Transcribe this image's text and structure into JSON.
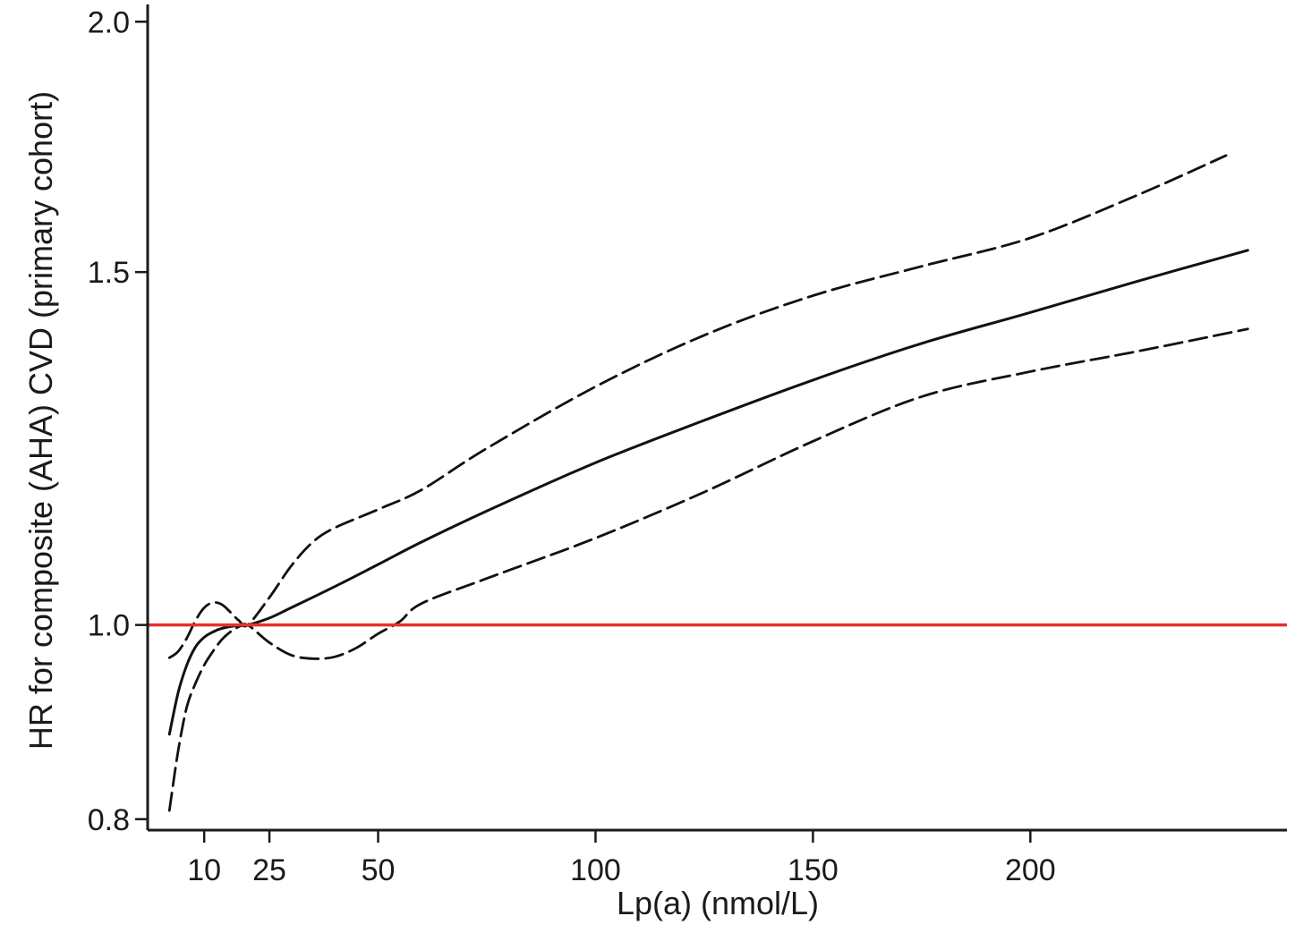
{
  "chart_data": {
    "type": "line",
    "title": "",
    "xlabel": "Lp(a) (nmol/L)",
    "ylabel": "HR for composite (AHA) CVD (primary cohort)",
    "xlim": [
      -3,
      259
    ],
    "ylim": [
      0.79,
      2.04
    ],
    "x_ticks": [
      10,
      25,
      50,
      100,
      150,
      200
    ],
    "x_tick_labels": [
      "10",
      "25",
      "50",
      "100",
      "150",
      "200"
    ],
    "y_ticks": [
      0.8,
      1.0,
      1.5,
      2.0
    ],
    "y_tick_labels": [
      "0.8",
      "1.0",
      "1.5",
      "2.0"
    ],
    "y_scale": "log",
    "grid": false,
    "reference_line": {
      "y": 1.0,
      "color": "#e8302a"
    },
    "series": [
      {
        "style": "solid",
        "color": "#111111",
        "x": [
          2,
          4,
          6,
          8,
          10,
          12,
          14,
          17,
          20,
          25,
          30,
          40,
          50,
          60,
          75,
          100,
          125,
          150,
          175,
          200,
          225,
          250
        ],
        "y": [
          0.882,
          0.925,
          0.955,
          0.975,
          0.986,
          0.992,
          0.996,
          0.999,
          1.0,
          1.008,
          1.02,
          1.045,
          1.072,
          1.1,
          1.14,
          1.205,
          1.265,
          1.325,
          1.382,
          1.432,
          1.485,
          1.538
        ]
      },
      {
        "style": "dashed",
        "color": "#111111",
        "x": [
          2,
          4,
          6,
          8,
          10,
          12,
          14,
          16,
          18,
          20,
          25,
          30,
          35,
          40,
          50,
          60,
          75,
          100,
          125,
          150,
          175,
          200,
          225,
          245
        ],
        "y": [
          0.963,
          0.97,
          0.985,
          1.005,
          1.02,
          1.026,
          1.024,
          1.015,
          1.005,
          1.0,
          1.032,
          1.07,
          1.1,
          1.118,
          1.142,
          1.168,
          1.225,
          1.315,
          1.395,
          1.46,
          1.51,
          1.56,
          1.64,
          1.715
        ]
      },
      {
        "style": "dashed",
        "color": "#111111",
        "x": [
          2,
          4,
          6,
          8,
          10,
          12,
          14,
          16,
          18,
          20,
          25,
          30,
          35,
          40,
          45,
          50,
          55,
          60,
          75,
          100,
          125,
          150,
          175,
          200,
          225,
          250
        ],
        "y": [
          0.808,
          0.865,
          0.91,
          0.935,
          0.955,
          0.97,
          0.983,
          0.992,
          0.998,
          1.0,
          0.98,
          0.966,
          0.962,
          0.964,
          0.974,
          0.99,
          1.004,
          1.025,
          1.055,
          1.105,
          1.165,
          1.235,
          1.3,
          1.338,
          1.37,
          1.405
        ]
      }
    ]
  }
}
